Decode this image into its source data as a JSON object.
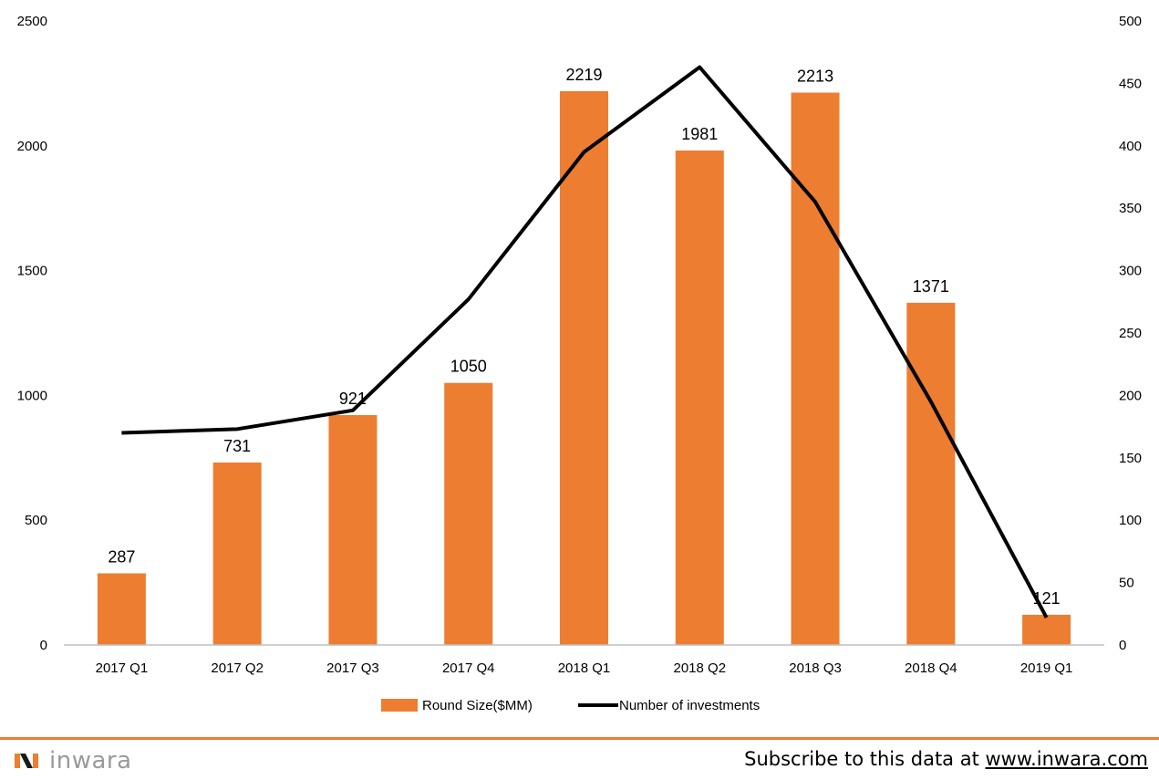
{
  "colors": {
    "bar": "#ED7D31",
    "line": "#000000",
    "accent": "#ED7D31",
    "axis": "#bfbfbf"
  },
  "chart_data": {
    "type": "bar",
    "categories": [
      "2017 Q1",
      "2017 Q2",
      "2017 Q3",
      "2017 Q4",
      "2018 Q1",
      "2018 Q2",
      "2018 Q3",
      "2018 Q4",
      "2019 Q1"
    ],
    "series": [
      {
        "name": "Round Size($MM)",
        "type": "bar",
        "axis": "left",
        "values": [
          287,
          731,
          921,
          1050,
          2219,
          1981,
          2213,
          1371,
          121
        ],
        "labels": [
          "287",
          "731",
          "921",
          "1050",
          "2219",
          "1981",
          "2213",
          "1371",
          "121"
        ]
      },
      {
        "name": "Number of investments",
        "type": "line",
        "axis": "right",
        "values": [
          170,
          173,
          188,
          277,
          395,
          463,
          355,
          195,
          22
        ]
      }
    ],
    "y_left": {
      "range": [
        0,
        2500
      ],
      "ticks": [
        "0",
        "500",
        "1000",
        "1500",
        "2000",
        "2500"
      ]
    },
    "y_right": {
      "range": [
        0,
        500
      ],
      "ticks": [
        "0",
        "50",
        "100",
        "150",
        "200",
        "250",
        "300",
        "350",
        "400",
        "450",
        "500"
      ]
    },
    "grid": false,
    "legend": "bottom",
    "title": "",
    "xlabel": "",
    "ylabel": ""
  },
  "footer": {
    "logo_text": "inwara",
    "subscribe_prefix": "Subscribe to this data at ",
    "subscribe_link": "www.inwara.com"
  }
}
